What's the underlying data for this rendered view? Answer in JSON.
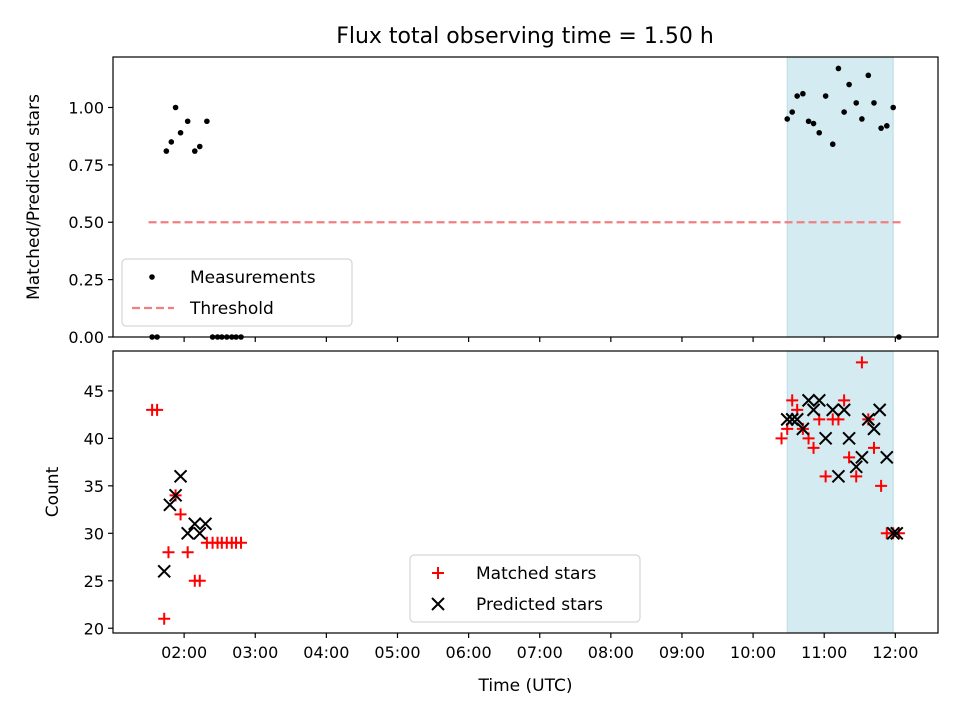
{
  "figure": {
    "title": "Flux total observing time = 1.50 h"
  },
  "chart_data": [
    {
      "type": "scatter",
      "ylabel": "Matched/Predicted stars",
      "xlim": [
        1.0,
        12.6
      ],
      "ylim": [
        0.0,
        1.22
      ],
      "yticks": [
        0.0,
        0.25,
        0.5,
        0.75,
        1.0
      ],
      "ytick_labels": [
        "0.00",
        "0.25",
        "0.50",
        "0.75",
        "1.00"
      ],
      "highlight_span": {
        "x_start": 10.48,
        "x_end": 11.97,
        "color": "#d3ebf1"
      },
      "legend": {
        "placement": "lower left",
        "entries": [
          "Measurements",
          "Threshold"
        ]
      },
      "series": [
        {
          "name": "Measurements",
          "marker": "dot",
          "color": "#000000",
          "x": [
            1.55,
            1.62,
            1.75,
            1.82,
            1.88,
            1.95,
            2.05,
            2.15,
            2.22,
            2.32,
            2.4,
            2.47,
            2.53,
            2.6,
            2.67,
            2.73,
            2.8,
            10.48,
            10.55,
            10.62,
            10.7,
            10.78,
            10.85,
            10.93,
            11.02,
            11.12,
            11.2,
            11.28,
            11.35,
            11.45,
            11.53,
            11.62,
            11.7,
            11.8,
            11.88,
            11.97,
            12.05
          ],
          "y": [
            0.0,
            0.0,
            0.81,
            0.85,
            1.0,
            0.89,
            0.94,
            0.81,
            0.83,
            0.94,
            0.0,
            0.0,
            0.0,
            0.0,
            0.0,
            0.0,
            0.0,
            0.95,
            0.98,
            1.05,
            1.06,
            0.94,
            0.93,
            0.89,
            1.05,
            0.84,
            1.17,
            0.98,
            1.1,
            1.02,
            0.95,
            1.14,
            1.02,
            0.91,
            0.92,
            1.0,
            0.0
          ]
        },
        {
          "name": "Threshold",
          "style": "dashed",
          "color": "#f08080",
          "x": [
            1.5,
            12.1
          ],
          "y": [
            0.5,
            0.5
          ]
        }
      ]
    },
    {
      "type": "scatter",
      "xlabel": "Time (UTC)",
      "ylabel": "Count",
      "xlim": [
        1.0,
        12.6
      ],
      "ylim": [
        19.5,
        49.2
      ],
      "xticks": [
        2,
        3,
        4,
        5,
        6,
        7,
        8,
        9,
        10,
        11,
        12
      ],
      "xtick_labels": [
        "02:00",
        "03:00",
        "04:00",
        "05:00",
        "06:00",
        "07:00",
        "08:00",
        "09:00",
        "10:00",
        "11:00",
        "12:00"
      ],
      "yticks": [
        20,
        25,
        30,
        35,
        40,
        45
      ],
      "ytick_labels": [
        "20",
        "25",
        "30",
        "35",
        "40",
        "45"
      ],
      "highlight_span": {
        "x_start": 10.48,
        "x_end": 11.97,
        "color": "#d3ebf1"
      },
      "legend": {
        "placement": "lower center",
        "entries": [
          "Matched stars",
          "Predicted stars"
        ]
      },
      "series": [
        {
          "name": "Matched stars",
          "marker": "plus",
          "color": "#ff0000",
          "x": [
            1.55,
            1.62,
            1.72,
            1.78,
            1.88,
            1.95,
            2.05,
            2.15,
            2.22,
            2.32,
            2.4,
            2.47,
            2.53,
            2.6,
            2.67,
            2.73,
            2.8,
            10.4,
            10.48,
            10.55,
            10.62,
            10.7,
            10.78,
            10.85,
            10.93,
            11.02,
            11.12,
            11.2,
            11.28,
            11.35,
            11.45,
            11.53,
            11.62,
            11.7,
            11.8,
            11.88,
            11.97,
            12.05
          ],
          "y": [
            43,
            43,
            21,
            28,
            34,
            32,
            28,
            25,
            25,
            29,
            29,
            29,
            29,
            29,
            29,
            29,
            29,
            40,
            41,
            44,
            43,
            41,
            40,
            39,
            42,
            36,
            42,
            42,
            44,
            38,
            36,
            48,
            42,
            39,
            35,
            30,
            30,
            30
          ]
        },
        {
          "name": "Predicted stars",
          "marker": "x",
          "color": "#000000",
          "x": [
            1.72,
            1.8,
            1.88,
            1.95,
            2.05,
            2.15,
            2.22,
            2.3,
            10.48,
            10.55,
            10.62,
            10.7,
            10.78,
            10.85,
            10.93,
            11.02,
            11.12,
            11.2,
            11.28,
            11.35,
            11.45,
            11.53,
            11.62,
            11.7,
            11.78,
            11.88,
            11.97,
            12.02
          ],
          "y": [
            26,
            33,
            34,
            36,
            30,
            31,
            30,
            31,
            42,
            42,
            42,
            41,
            44,
            43,
            44,
            40,
            43,
            36,
            43,
            40,
            37,
            38,
            42,
            41,
            43,
            38,
            30,
            30
          ]
        }
      ]
    }
  ]
}
